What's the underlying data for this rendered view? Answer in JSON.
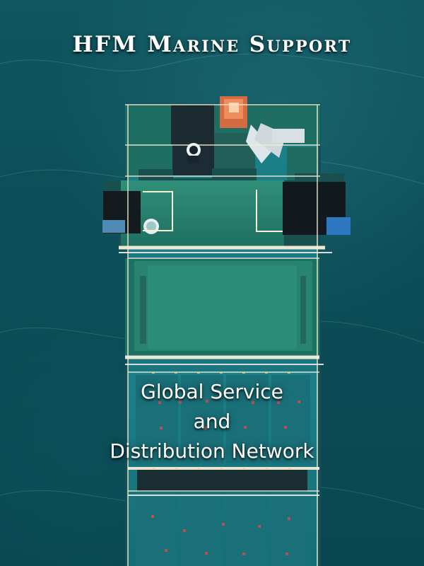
{
  "hero": {
    "title": "HFM Marine Support",
    "tagline_lines": [
      "Global Service",
      "and",
      "Distribution Network"
    ]
  }
}
